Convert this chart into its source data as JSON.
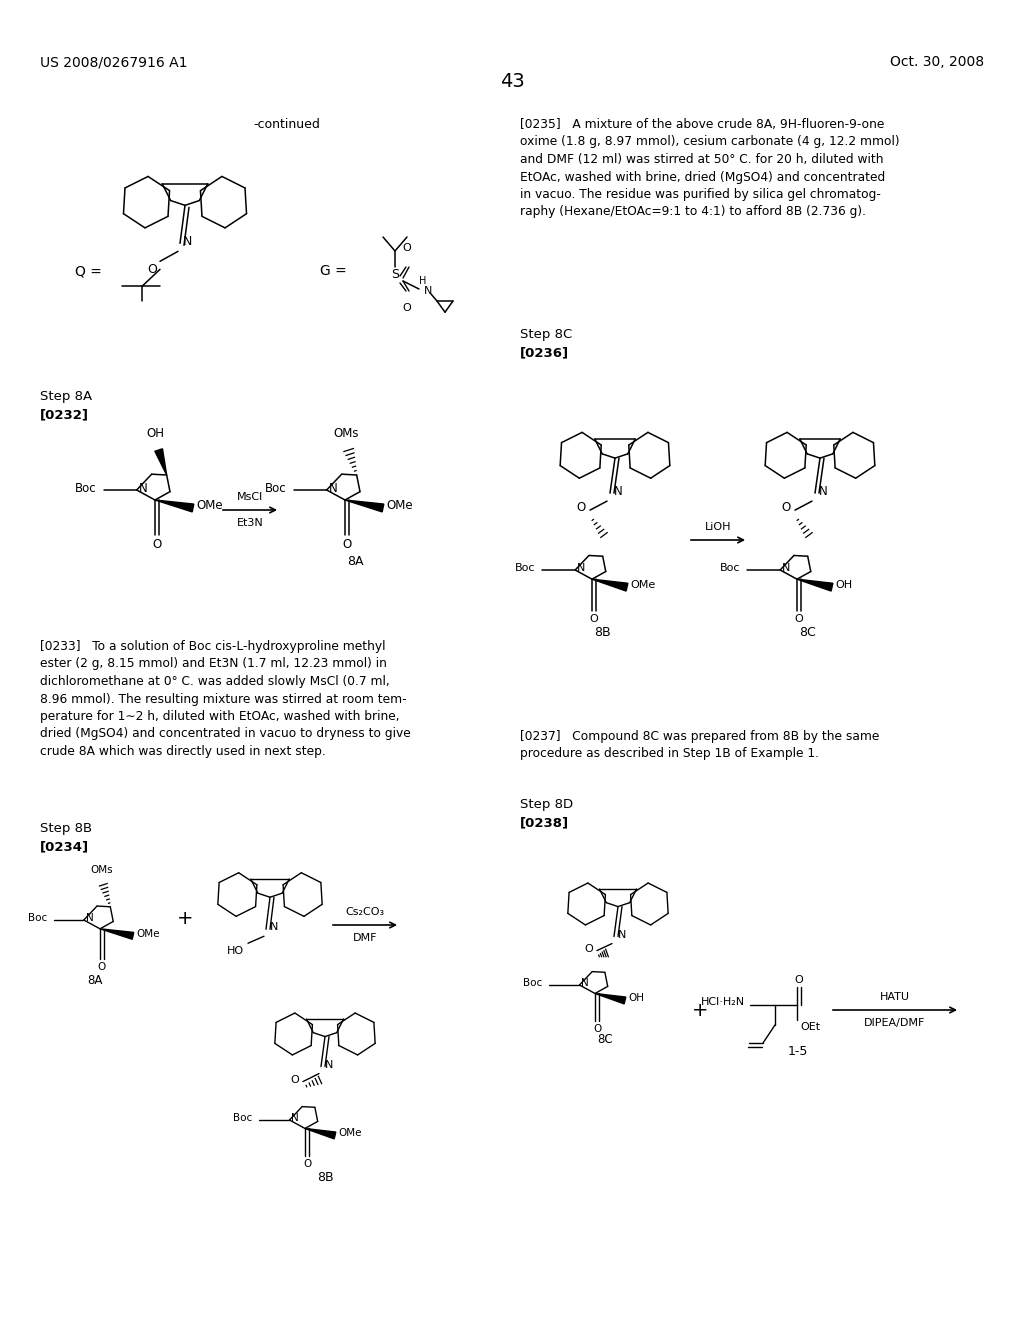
{
  "page_header_left": "US 2008/0267916 A1",
  "page_header_right": "Oct. 30, 2008",
  "page_number": "43",
  "bg": "#ffffff"
}
